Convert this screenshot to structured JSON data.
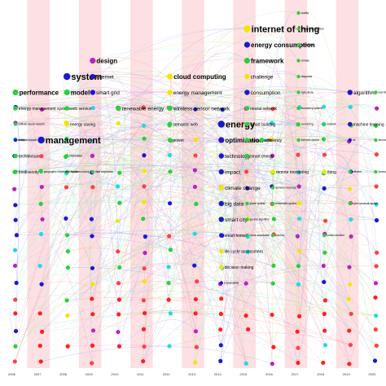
{
  "timeline": {
    "years": [
      "2006",
      "2007",
      "2008",
      "2009",
      "2010",
      "2011",
      "2012",
      "2013",
      "2014",
      "2015",
      "2016",
      "2017",
      "2018",
      "2019",
      "2020"
    ]
  },
  "keywords": [
    {
      "text": "internet of thing",
      "year": "2015",
      "row": 1,
      "color": "#f2e600",
      "size": "xl"
    },
    {
      "text": "quality",
      "year": "2017",
      "row": 0,
      "color": "#2ad03a",
      "size": "xs"
    },
    {
      "text": "photovoltaic system",
      "year": "2017",
      "row": 1,
      "color": "#2ad03a",
      "size": "xs"
    },
    {
      "text": "energy consumption",
      "year": "2015",
      "row": 2,
      "color": "#1a1acc",
      "size": "l"
    },
    {
      "text": "application",
      "year": "2017",
      "row": 2,
      "color": "#2ad03a",
      "size": "xs"
    },
    {
      "text": "framework",
      "year": "2015",
      "row": 3,
      "color": "#2ad03a",
      "size": "l"
    },
    {
      "text": "climate",
      "year": "2017",
      "row": 3,
      "color": "#2ad03a",
      "size": "xs"
    },
    {
      "text": "design",
      "year": "2009",
      "row": 3,
      "color": "#c020c0",
      "size": "l"
    },
    {
      "text": "system",
      "year": "2008",
      "row": 4,
      "color": "#1a1acc",
      "size": "xl"
    },
    {
      "text": "internet",
      "year": "2009",
      "row": 4,
      "color": "#1a1acc",
      "size": "m"
    },
    {
      "text": "cloud computing",
      "year": "2012",
      "row": 4,
      "color": "#f2e600",
      "size": "l"
    },
    {
      "text": "challenge",
      "year": "2015",
      "row": 4,
      "color": "#f2e600",
      "size": "m"
    },
    {
      "text": "diagnosis",
      "year": "2017",
      "row": 4,
      "color": "#2ad03a",
      "size": "xs"
    },
    {
      "text": "performance",
      "year": "2006",
      "row": 5,
      "color": "#2ad03a",
      "size": "l"
    },
    {
      "text": "model",
      "year": "2008",
      "row": 5,
      "color": "#2ad03a",
      "size": "l"
    },
    {
      "text": "smart grid",
      "year": "2009",
      "row": 5,
      "color": "#1a1acc",
      "size": "m"
    },
    {
      "text": "energy management",
      "year": "2012",
      "row": 5,
      "color": "#f2e600",
      "size": "m"
    },
    {
      "text": "consumption",
      "year": "2015",
      "row": 5,
      "color": "#1a1acc",
      "size": "m"
    },
    {
      "text": "agriculture",
      "year": "2017",
      "row": 5,
      "color": "#2ad03a",
      "size": "xs"
    },
    {
      "text": "algorithm",
      "year": "2019",
      "row": 5,
      "color": "#1a1acc",
      "size": "m"
    },
    {
      "text": "real-time",
      "year": "2020",
      "row": 5,
      "color": "#2ad03a",
      "size": "xs"
    },
    {
      "text": "energy management system",
      "year": "2006",
      "row": 6,
      "color": "#2ad03a",
      "size": "s"
    },
    {
      "text": "web service",
      "year": "2008",
      "row": 6,
      "color": "#2ad03a",
      "size": "s"
    },
    {
      "text": "renewable energy",
      "year": "2010",
      "row": 6,
      "color": "#2ad03a",
      "size": "m"
    },
    {
      "text": "wireless sensor network",
      "year": "2012",
      "row": 6,
      "color": "#2ad03a",
      "size": "m"
    },
    {
      "text": "neural network",
      "year": "2015",
      "row": 6,
      "color": "#2ad03a",
      "size": "s"
    },
    {
      "text": "monitoring system",
      "year": "2017",
      "row": 6,
      "color": "#2ad03a",
      "size": "xs"
    },
    {
      "text": "machine learning",
      "year": "2019",
      "row": 7,
      "color": "#1a1acc",
      "size": "s"
    },
    {
      "text": "artificial neural network",
      "year": "2006",
      "row": 7,
      "color": "#2ad03a",
      "size": "xs"
    },
    {
      "text": "energy saving",
      "year": "2008",
      "row": 7,
      "color": "#f2e600",
      "size": "s"
    },
    {
      "text": "semantic web",
      "year": "2012",
      "row": 7,
      "color": "#2ad03a",
      "size": "s"
    },
    {
      "text": "energy",
      "year": "2014",
      "row": 7,
      "color": "#1a1acc",
      "size": "xl"
    },
    {
      "text": "smart building",
      "year": "2015",
      "row": 7,
      "color": "#2ad03a",
      "size": "s"
    },
    {
      "text": "monitoring",
      "year": "2017",
      "row": 7,
      "color": "#2ad03a",
      "size": "xs"
    },
    {
      "text": "network",
      "year": "2018",
      "row": 7,
      "color": "#2ad03a",
      "size": "xs"
    },
    {
      "text": "management",
      "year": "2007",
      "row": 8,
      "color": "#1a1acc",
      "size": "xl"
    },
    {
      "text": "decision support",
      "year": "2006",
      "row": 8,
      "color": "#2ad03a",
      "size": "xs"
    },
    {
      "text": "power",
      "year": "2012",
      "row": 8,
      "color": "#2ad03a",
      "size": "s"
    },
    {
      "text": "optimization",
      "year": "2014",
      "row": 8,
      "color": "#1a1acc",
      "size": "l"
    },
    {
      "text": "temperature",
      "year": "2015",
      "row": 8,
      "color": "#2ad03a",
      "size": "s"
    },
    {
      "text": "efficiency",
      "year": "2015",
      "row": 8,
      "color": "#2ad03a",
      "size": "s"
    },
    {
      "text": "thermal comfort",
      "year": "2017",
      "row": 8,
      "color": "#2ad03a",
      "size": "xs"
    },
    {
      "text": "iot",
      "year": "2019",
      "row": 8,
      "color": "#1a1acc",
      "size": "xs"
    },
    {
      "text": "fault detection",
      "year": "2020",
      "row": 8,
      "color": "#2ad03a",
      "size": "xs"
    },
    {
      "text": "ubility",
      "year": "2006",
      "row": 8,
      "color": "#1a1acc",
      "size": "xs",
      "anchor": "edge"
    },
    {
      "text": "information",
      "year": "2008",
      "row": 9,
      "color": "#2ad03a",
      "size": "xs"
    },
    {
      "text": "technology",
      "year": "2014",
      "row": 9,
      "color": "#1a1acc",
      "size": "m"
    },
    {
      "text": "smart energy",
      "year": "2015",
      "row": 9,
      "color": "#2ad03a",
      "size": "s"
    },
    {
      "text": "architecture",
      "year": "2006",
      "row": 9,
      "color": "#2ad03a",
      "size": "s"
    },
    {
      "text": "circular economy",
      "year": "2008",
      "row": 10,
      "color": "#2ad03a",
      "size": "xs"
    },
    {
      "text": "data acquisition",
      "year": "2009",
      "row": 10,
      "color": "#2ad03a",
      "size": "xs"
    },
    {
      "text": "impact",
      "year": "2014",
      "row": 10,
      "color": "#1a1acc",
      "size": "m"
    },
    {
      "text": "remote monitoring",
      "year": "2016",
      "row": 10,
      "color": "#f2e600",
      "size": "s"
    },
    {
      "text": "thing",
      "year": "2018",
      "row": 10,
      "color": "#f2e600",
      "size": "s"
    },
    {
      "text": "efficient",
      "year": "2019",
      "row": 10,
      "color": "#2ad03a",
      "size": "xs"
    },
    {
      "text": "bluetooth low energy",
      "year": "2020",
      "row": 10,
      "color": "#2ad03a",
      "size": "xs"
    },
    {
      "text": "biodiversity",
      "year": "2006",
      "row": 10,
      "color": "#2ad03a",
      "size": "s"
    },
    {
      "text": "geographic information system",
      "year": "2007",
      "row": 10,
      "color": "#2ad03a",
      "size": "xs"
    },
    {
      "text": "climate change",
      "year": "2014",
      "row": 11,
      "color": "#f2e600",
      "size": "m"
    },
    {
      "text": "demand response",
      "year": "2016",
      "row": 11,
      "color": "#2ad03a",
      "size": "xs"
    },
    {
      "text": "big data",
      "year": "2014",
      "row": 12,
      "color": "#1a1acc",
      "size": "m"
    },
    {
      "text": "power quality",
      "year": "2015",
      "row": 12,
      "color": "#2ad03a",
      "size": "xs"
    },
    {
      "text": "embedded system",
      "year": "2016",
      "row": 12,
      "color": "#2ad03a",
      "size": "xs"
    },
    {
      "text": "cyber physical system",
      "year": "2019",
      "row": 12,
      "color": "#2ad03a",
      "size": "xs"
    },
    {
      "text": "smart city",
      "year": "2014",
      "row": 13,
      "color": "#1a1acc",
      "size": "m"
    },
    {
      "text": "genetic algorithm",
      "year": "2015",
      "row": 13,
      "color": "#2ad03a",
      "size": "xs"
    },
    {
      "text": "smart home",
      "year": "2014",
      "row": 14,
      "color": "#1a1acc",
      "size": "s"
    },
    {
      "text": "home automation",
      "year": "2015",
      "row": 14,
      "color": "#2ad03a",
      "size": "xs"
    },
    {
      "text": "comfort",
      "year": "2016",
      "row": 14,
      "color": "#2ad03a",
      "size": "xs"
    },
    {
      "text": "communication",
      "year": "2018",
      "row": 14,
      "color": "#2ad03a",
      "size": "xs"
    },
    {
      "text": "life cycle assessment",
      "year": "2014",
      "row": 15,
      "color": "#f2e600",
      "size": "s"
    },
    {
      "text": "decision making",
      "year": "2014",
      "row": 16,
      "color": "#f2e600",
      "size": "s"
    },
    {
      "text": "sustainability",
      "year": "2014",
      "row": 17,
      "color": "#1a1acc",
      "size": "xs"
    }
  ]
}
